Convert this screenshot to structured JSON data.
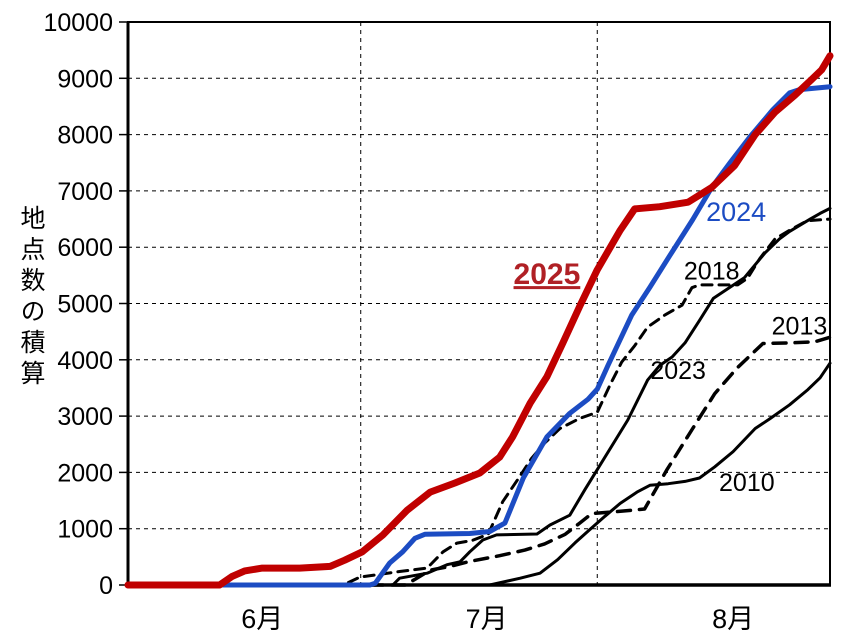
{
  "chart_data": {
    "type": "line",
    "title": "",
    "y_axis": {
      "label": "地点数の積算",
      "min": 0,
      "max": 10000,
      "tick_step": 1000,
      "ticks": [
        0,
        1000,
        2000,
        3000,
        4000,
        5000,
        6000,
        7000,
        8000,
        9000,
        10000
      ]
    },
    "x_axis": {
      "unit": "days from June 1",
      "min": 0,
      "max": 92,
      "month_labels": [
        {
          "text": "6月",
          "day": 17.6
        },
        {
          "text": "7月",
          "day": 47.0
        },
        {
          "text": "8月",
          "day": 79.3
        }
      ],
      "gridline_days": [
        30.5,
        61.5
      ]
    },
    "grid": {
      "horizontal": true,
      "vertical": true,
      "style": "dashed"
    },
    "legend_position": "inline-labels",
    "series": [
      {
        "name": "2010",
        "color": "#000000",
        "width": 3,
        "dash": "",
        "label": {
          "text": "2010",
          "day": 81.1,
          "value": 1790,
          "size": 25,
          "color": "#000000",
          "bold": false,
          "underline": false
        },
        "points": [
          [
            0,
            0
          ],
          [
            47.4,
            0
          ],
          [
            49.4,
            60
          ],
          [
            51.4,
            120
          ],
          [
            54,
            210
          ],
          [
            56.3,
            450
          ],
          [
            58.6,
            750
          ],
          [
            60.5,
            980
          ],
          [
            62.5,
            1220
          ],
          [
            64.5,
            1450
          ],
          [
            66.7,
            1650
          ],
          [
            68.4,
            1770
          ],
          [
            70.8,
            1800
          ],
          [
            73,
            1840
          ],
          [
            74.9,
            1900
          ],
          [
            76.9,
            2100
          ],
          [
            79.3,
            2370
          ],
          [
            82.2,
            2780
          ],
          [
            84.1,
            2950
          ],
          [
            86.7,
            3200
          ],
          [
            89.1,
            3470
          ],
          [
            90.7,
            3680
          ],
          [
            92,
            3940
          ]
        ]
      },
      {
        "name": "2013",
        "color": "#000000",
        "width": 3.5,
        "dash": "13 9",
        "label": {
          "text": "2013",
          "day": 88.0,
          "value": 4565,
          "size": 25,
          "color": "#000000",
          "bold": false,
          "underline": false
        },
        "points": [
          [
            0,
            0
          ],
          [
            36.3,
            0
          ],
          [
            37.6,
            100
          ],
          [
            39.6,
            265
          ],
          [
            42.2,
            330
          ],
          [
            44.8,
            420
          ],
          [
            48.7,
            520
          ],
          [
            52,
            620
          ],
          [
            54.6,
            730
          ],
          [
            57.3,
            900
          ],
          [
            59.2,
            1100
          ],
          [
            60.8,
            1270
          ],
          [
            63.8,
            1300
          ],
          [
            67.7,
            1350
          ],
          [
            70.6,
            2040
          ],
          [
            74,
            2780
          ],
          [
            76.9,
            3400
          ],
          [
            79.8,
            3850
          ],
          [
            83.2,
            4290
          ],
          [
            86.7,
            4300
          ],
          [
            90,
            4320
          ],
          [
            92,
            4400
          ]
        ]
      },
      {
        "name": "2023",
        "color": "#000000",
        "width": 3,
        "dash": "",
        "label": {
          "text": "2023",
          "day": 72.1,
          "value": 3780,
          "size": 25,
          "color": "#000000",
          "bold": false,
          "underline": false
        },
        "points": [
          [
            0,
            0
          ],
          [
            34.7,
            0
          ],
          [
            35.6,
            120
          ],
          [
            39.2,
            210
          ],
          [
            41.8,
            360
          ],
          [
            43.5,
            410
          ],
          [
            44.8,
            590
          ],
          [
            46.5,
            800
          ],
          [
            48.3,
            890
          ],
          [
            53.6,
            905
          ],
          [
            55.3,
            1065
          ],
          [
            57.9,
            1240
          ],
          [
            59.9,
            1700
          ],
          [
            61.5,
            2050
          ],
          [
            65.5,
            2930
          ],
          [
            68.1,
            3640
          ],
          [
            69.7,
            3900
          ],
          [
            71.3,
            4050
          ],
          [
            73,
            4300
          ],
          [
            74.9,
            4700
          ],
          [
            76.7,
            5090
          ],
          [
            78.9,
            5290
          ],
          [
            80.8,
            5460
          ],
          [
            83.5,
            5900
          ],
          [
            85.4,
            6150
          ],
          [
            86.7,
            6280
          ],
          [
            89.4,
            6500
          ],
          [
            90.7,
            6600
          ],
          [
            92,
            6690
          ]
        ]
      },
      {
        "name": "2018",
        "color": "#000000",
        "width": 3,
        "dash": "10 7",
        "label": {
          "text": "2018",
          "day": 76.5,
          "value": 5540,
          "size": 25,
          "color": "#000000",
          "bold": false,
          "underline": false
        },
        "points": [
          [
            0,
            0
          ],
          [
            28.2,
            0
          ],
          [
            30.4,
            140
          ],
          [
            33,
            190
          ],
          [
            35.6,
            240
          ],
          [
            39.2,
            300
          ],
          [
            41.3,
            590
          ],
          [
            43.1,
            745
          ],
          [
            45.1,
            790
          ],
          [
            47.2,
            900
          ],
          [
            49.1,
            1480
          ],
          [
            51,
            1860
          ],
          [
            52.9,
            2250
          ],
          [
            54.6,
            2520
          ],
          [
            56.6,
            2780
          ],
          [
            59.2,
            2960
          ],
          [
            61.5,
            3070
          ],
          [
            63.2,
            3560
          ],
          [
            64.7,
            3960
          ],
          [
            66.4,
            4250
          ],
          [
            68.1,
            4580
          ],
          [
            70.4,
            4800
          ],
          [
            72.6,
            4970
          ],
          [
            73.9,
            5280
          ],
          [
            74.9,
            5330
          ],
          [
            79.9,
            5330
          ],
          [
            81.2,
            5450
          ],
          [
            82.8,
            5800
          ],
          [
            84.8,
            6150
          ],
          [
            86.7,
            6300
          ],
          [
            89,
            6470
          ],
          [
            92,
            6500
          ]
        ]
      },
      {
        "name": "2024",
        "color": "#1c4cc3",
        "width": 5,
        "dash": "",
        "label": {
          "text": "2024",
          "day": 79.7,
          "value": 6590,
          "size": 27,
          "color": "#1c4cc3",
          "bold": false,
          "underline": false
        },
        "points": [
          [
            0,
            0
          ],
          [
            31.7,
            0
          ],
          [
            32.4,
            30
          ],
          [
            34.3,
            390
          ],
          [
            36,
            590
          ],
          [
            37.6,
            830
          ],
          [
            38.9,
            900
          ],
          [
            44.8,
            915
          ],
          [
            47.4,
            950
          ],
          [
            49.4,
            1100
          ],
          [
            51.8,
            1900
          ],
          [
            54.9,
            2630
          ],
          [
            57.9,
            3050
          ],
          [
            60.3,
            3300
          ],
          [
            61.5,
            3480
          ],
          [
            62.9,
            3900
          ],
          [
            66,
            4790
          ],
          [
            68.4,
            5290
          ],
          [
            71,
            5850
          ],
          [
            74,
            6490
          ],
          [
            76.5,
            7060
          ],
          [
            78.9,
            7500
          ],
          [
            81.5,
            7960
          ],
          [
            84.5,
            8440
          ],
          [
            86.7,
            8740
          ],
          [
            88,
            8800
          ],
          [
            92,
            8850
          ]
        ]
      },
      {
        "name": "2025",
        "color": "#c00000",
        "width": 7,
        "dash": "",
        "label": {
          "text": "2025",
          "day": 54.9,
          "value": 5485,
          "size": 30,
          "color": "#b02025",
          "bold": true,
          "underline": true
        },
        "points": [
          [
            0,
            0
          ],
          [
            12,
            0
          ],
          [
            13.6,
            150
          ],
          [
            15.3,
            250
          ],
          [
            17.6,
            300
          ],
          [
            22.5,
            300
          ],
          [
            26.5,
            330
          ],
          [
            28.4,
            440
          ],
          [
            30.7,
            590
          ],
          [
            33.4,
            890
          ],
          [
            36.6,
            1330
          ],
          [
            39.6,
            1650
          ],
          [
            42.8,
            1810
          ],
          [
            46.1,
            1990
          ],
          [
            48.7,
            2270
          ],
          [
            50.4,
            2630
          ],
          [
            52.7,
            3230
          ],
          [
            54.9,
            3700
          ],
          [
            57,
            4300
          ],
          [
            59.2,
            4950
          ],
          [
            61.5,
            5600
          ],
          [
            64.5,
            6300
          ],
          [
            66.4,
            6680
          ],
          [
            69.7,
            6720
          ],
          [
            73.4,
            6800
          ],
          [
            76.5,
            7060
          ],
          [
            79.5,
            7450
          ],
          [
            82.2,
            8000
          ],
          [
            84.8,
            8400
          ],
          [
            87.4,
            8700
          ],
          [
            89.6,
            8980
          ],
          [
            90.9,
            9150
          ],
          [
            92,
            9400
          ]
        ]
      }
    ]
  }
}
